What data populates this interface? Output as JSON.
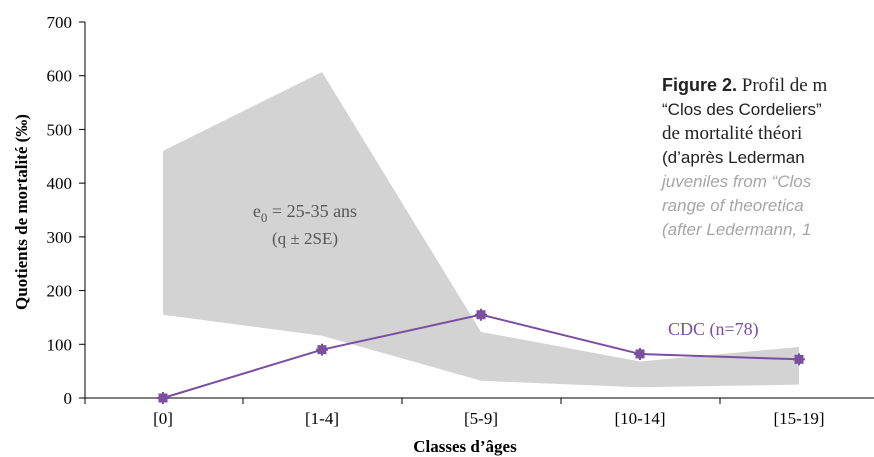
{
  "chart_data": {
    "type": "line",
    "title": "",
    "xlabel": "Classes d’âges",
    "ylabel": "Quotients de mortalité (‰)",
    "categories": [
      "[0]",
      "[1-4]",
      "[5-9]",
      "[10-14]",
      "[15-19]"
    ],
    "ylim": [
      0,
      700
    ],
    "yticks": [
      0,
      100,
      200,
      300,
      400,
      500,
      600,
      700
    ],
    "grid": false,
    "series": [
      {
        "name": "CDC (n=78)",
        "values": [
          0,
          90,
          155,
          82,
          72
        ],
        "color": "#7b4fa0"
      }
    ],
    "band": {
      "upper": [
        460,
        607,
        123,
        68,
        95
      ],
      "lower": [
        155,
        116,
        32,
        20,
        25
      ],
      "color": "#d3d3d3",
      "label_main": "e0 = 25-35 ans",
      "label_e": "e",
      "label_sub": "0",
      "label_rest": " = 25-35 ans",
      "label_note": "(q ± 2SE)"
    }
  },
  "caption": {
    "fig_label": "Figure 2.",
    "fr_line1": " Profil de m",
    "fr_line2": "“Clos des Cordeliers”",
    "fr_line3": "de mortalité théori",
    "fr_line4": "(d’après Lederman",
    "en_line1": "juveniles from “Clos",
    "en_line2": "range of theoretica",
    "en_line3": "(after Ledermann, 1"
  },
  "colors": {
    "axis": "#000000",
    "caption_en": "#a6a6a6",
    "caption_fr": "#222222"
  }
}
